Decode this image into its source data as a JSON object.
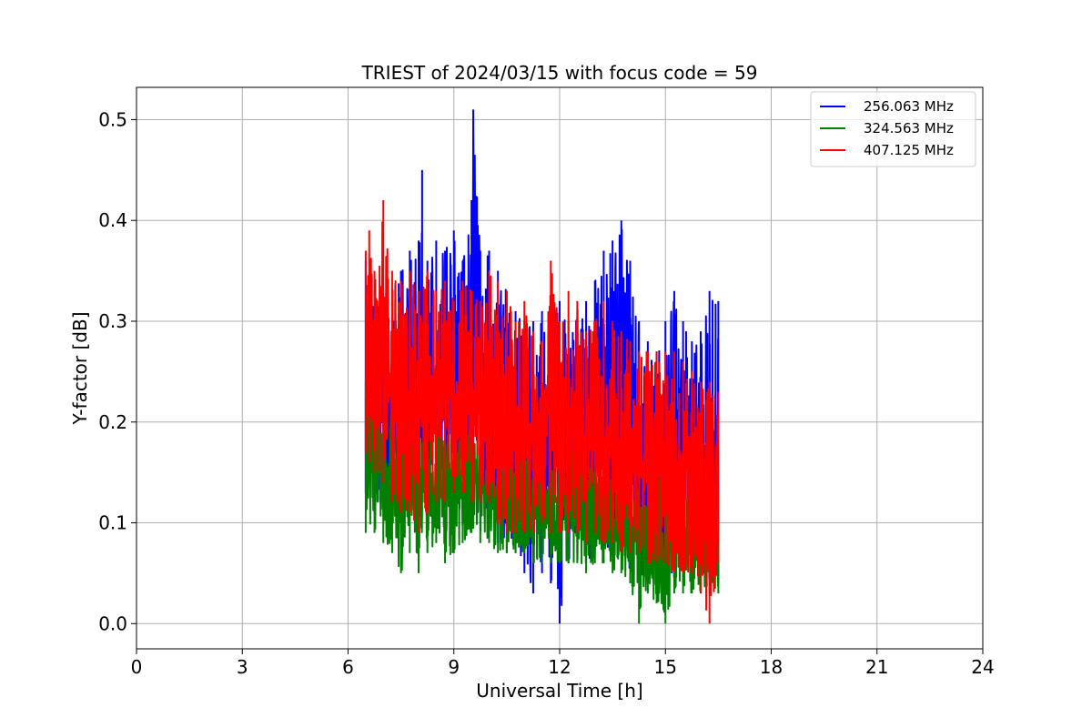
{
  "chart_data": {
    "type": "line",
    "title": "TRIEST of 2024/03/15 with focus code = 59",
    "xlabel": "Universal Time [h]",
    "ylabel": "Y-factor [dB]",
    "xlim": [
      0,
      24
    ],
    "ylim": [
      -0.025,
      0.532
    ],
    "xticks": [
      0,
      3,
      6,
      9,
      12,
      15,
      18,
      21,
      24
    ],
    "xtick_labels": [
      "0",
      "3",
      "6",
      "9",
      "12",
      "15",
      "18",
      "21",
      "24"
    ],
    "yticks": [
      0.0,
      0.1,
      0.2,
      0.3,
      0.4,
      0.5
    ],
    "ytick_labels": [
      "0.0",
      "0.1",
      "0.2",
      "0.3",
      "0.4",
      "0.5"
    ],
    "grid": true,
    "legend_position": "top-right",
    "series": [
      {
        "name": "256.063 MHz",
        "color": "#0000ff",
        "x": [
          6.5,
          6.75,
          7.0,
          7.25,
          7.5,
          7.75,
          8.0,
          8.1,
          8.25,
          8.5,
          8.75,
          9.0,
          9.25,
          9.5,
          9.55,
          9.75,
          10.0,
          10.25,
          10.5,
          10.75,
          11.0,
          11.25,
          11.5,
          11.75,
          12.0,
          12.25,
          12.5,
          12.75,
          13.0,
          13.25,
          13.5,
          13.75,
          14.0,
          14.25,
          14.5,
          14.75,
          15.0,
          15.25,
          15.5,
          15.75,
          16.0,
          16.25,
          16.5
        ],
        "y_max": [
          0.36,
          0.34,
          0.33,
          0.32,
          0.35,
          0.37,
          0.38,
          0.45,
          0.36,
          0.38,
          0.37,
          0.39,
          0.36,
          0.42,
          0.51,
          0.37,
          0.37,
          0.35,
          0.33,
          0.31,
          0.3,
          0.3,
          0.31,
          0.3,
          0.32,
          0.3,
          0.31,
          0.32,
          0.34,
          0.37,
          0.38,
          0.4,
          0.36,
          0.3,
          0.28,
          0.27,
          0.3,
          0.33,
          0.3,
          0.28,
          0.29,
          0.33,
          0.32
        ],
        "y_min": [
          0.13,
          0.11,
          0.11,
          0.1,
          0.11,
          0.12,
          0.12,
          0.13,
          0.12,
          0.12,
          0.12,
          0.11,
          0.11,
          0.12,
          0.12,
          0.1,
          0.09,
          0.08,
          0.07,
          0.07,
          0.05,
          0.03,
          0.05,
          0.04,
          0.0,
          0.06,
          0.07,
          0.06,
          0.07,
          0.08,
          0.07,
          0.08,
          0.05,
          0.05,
          0.04,
          0.05,
          0.05,
          0.05,
          0.04,
          0.05,
          0.05,
          0.04,
          0.04
        ]
      },
      {
        "name": "324.563 MHz",
        "color": "#008000",
        "x": [
          6.5,
          6.75,
          7.0,
          7.25,
          7.5,
          7.75,
          8.0,
          8.25,
          8.5,
          8.75,
          9.0,
          9.25,
          9.5,
          9.75,
          10.0,
          10.25,
          10.5,
          10.75,
          11.0,
          11.25,
          11.5,
          11.75,
          12.0,
          12.25,
          12.5,
          12.75,
          13.0,
          13.25,
          13.5,
          13.75,
          14.0,
          14.25,
          14.5,
          14.75,
          15.0,
          15.25,
          15.5,
          15.75,
          16.0,
          16.25,
          16.5
        ],
        "y_max": [
          0.24,
          0.22,
          0.21,
          0.21,
          0.21,
          0.2,
          0.2,
          0.2,
          0.2,
          0.19,
          0.19,
          0.19,
          0.19,
          0.18,
          0.18,
          0.18,
          0.18,
          0.17,
          0.17,
          0.17,
          0.17,
          0.17,
          0.17,
          0.17,
          0.17,
          0.16,
          0.16,
          0.16,
          0.16,
          0.15,
          0.15,
          0.15,
          0.15,
          0.15,
          0.14,
          0.14,
          0.14,
          0.14,
          0.14,
          0.13,
          0.13
        ],
        "y_min": [
          0.09,
          0.09,
          0.08,
          0.07,
          0.05,
          0.07,
          0.05,
          0.07,
          0.08,
          0.06,
          0.07,
          0.08,
          0.09,
          0.08,
          0.08,
          0.07,
          0.07,
          0.07,
          0.07,
          0.06,
          0.06,
          0.06,
          0.06,
          0.06,
          0.06,
          0.05,
          0.06,
          0.06,
          0.05,
          0.05,
          0.04,
          0.0,
          0.03,
          0.02,
          0.0,
          0.03,
          0.03,
          0.03,
          0.03,
          0.03,
          0.03
        ]
      },
      {
        "name": "407.125 MHz",
        "color": "#ff0000",
        "x": [
          6.5,
          6.6,
          6.75,
          7.0,
          7.25,
          7.5,
          7.75,
          8.0,
          8.25,
          8.5,
          8.75,
          9.0,
          9.25,
          9.5,
          9.75,
          10.0,
          10.25,
          10.5,
          10.75,
          11.0,
          11.25,
          11.5,
          11.75,
          12.0,
          12.25,
          12.5,
          12.75,
          13.0,
          13.25,
          13.5,
          13.75,
          14.0,
          14.25,
          14.5,
          14.75,
          15.0,
          15.25,
          15.5,
          15.75,
          16.0,
          16.25,
          16.5
        ],
        "y_max": [
          0.37,
          0.39,
          0.35,
          0.42,
          0.35,
          0.34,
          0.35,
          0.33,
          0.35,
          0.33,
          0.34,
          0.32,
          0.34,
          0.33,
          0.32,
          0.35,
          0.34,
          0.33,
          0.3,
          0.32,
          0.29,
          0.28,
          0.36,
          0.3,
          0.33,
          0.32,
          0.29,
          0.3,
          0.32,
          0.3,
          0.29,
          0.28,
          0.27,
          0.27,
          0.27,
          0.27,
          0.27,
          0.26,
          0.25,
          0.24,
          0.24,
          0.23
        ],
        "y_min": [
          0.17,
          0.16,
          0.15,
          0.14,
          0.12,
          0.11,
          0.11,
          0.09,
          0.11,
          0.12,
          0.12,
          0.13,
          0.13,
          0.12,
          0.12,
          0.12,
          0.1,
          0.09,
          0.09,
          0.09,
          0.09,
          0.1,
          0.09,
          0.09,
          0.09,
          0.09,
          0.08,
          0.09,
          0.08,
          0.08,
          0.07,
          0.07,
          0.07,
          0.06,
          0.06,
          0.06,
          0.05,
          0.05,
          0.05,
          0.03,
          0.0,
          0.06
        ]
      }
    ]
  }
}
